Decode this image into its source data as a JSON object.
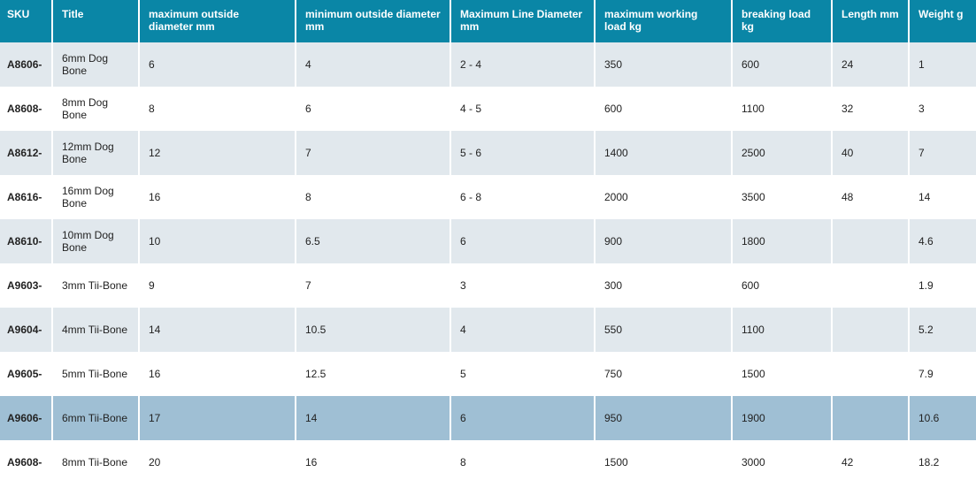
{
  "table": {
    "header": [
      "SKU",
      "Title",
      "maximum outside diameter mm",
      "minimum outside diameter mm",
      "Maximum Line Diameter mm",
      "maximum working load kg",
      "breaking load kg",
      "Length mm",
      "Weight g"
    ],
    "rows": [
      [
        "A8606-",
        "6mm Dog Bone",
        "6",
        "4",
        "2 - 4",
        "350",
        "600",
        "24",
        "1"
      ],
      [
        "A8608-",
        "8mm Dog Bone",
        "8",
        "6",
        "4 - 5",
        "600",
        "1100",
        "32",
        "3"
      ],
      [
        "A8612-",
        "12mm Dog Bone",
        "12",
        "7",
        "5 - 6",
        "1400",
        "2500",
        "40",
        "7"
      ],
      [
        "A8616-",
        "16mm Dog Bone",
        "16",
        "8",
        "6 - 8",
        "2000",
        "3500",
        "48",
        "14"
      ],
      [
        "A8610-",
        "10mm Dog Bone",
        "10",
        "6.5",
        "6",
        "900",
        "1800",
        null,
        "4.6"
      ],
      [
        "A9603-",
        "3mm Tii-Bone",
        "9",
        "7",
        "3",
        "300",
        "600",
        null,
        "1.9"
      ],
      [
        "A9604-",
        "4mm Tii-Bone",
        "14",
        "10.5",
        "4",
        "550",
        "1100",
        null,
        "5.2"
      ],
      [
        "A9605-",
        "5mm Tii-Bone",
        "16",
        "12.5",
        "5",
        "750",
        "1500",
        null,
        "7.9"
      ],
      [
        "A9606-",
        "6mm Tii-Bone",
        "17",
        "14",
        "6",
        "950",
        "1900",
        null,
        "10.6"
      ],
      [
        "A9608-",
        "8mm Tii-Bone",
        "20",
        "16",
        "8",
        "1500",
        "3000",
        "42",
        "18.2"
      ]
    ]
  }
}
